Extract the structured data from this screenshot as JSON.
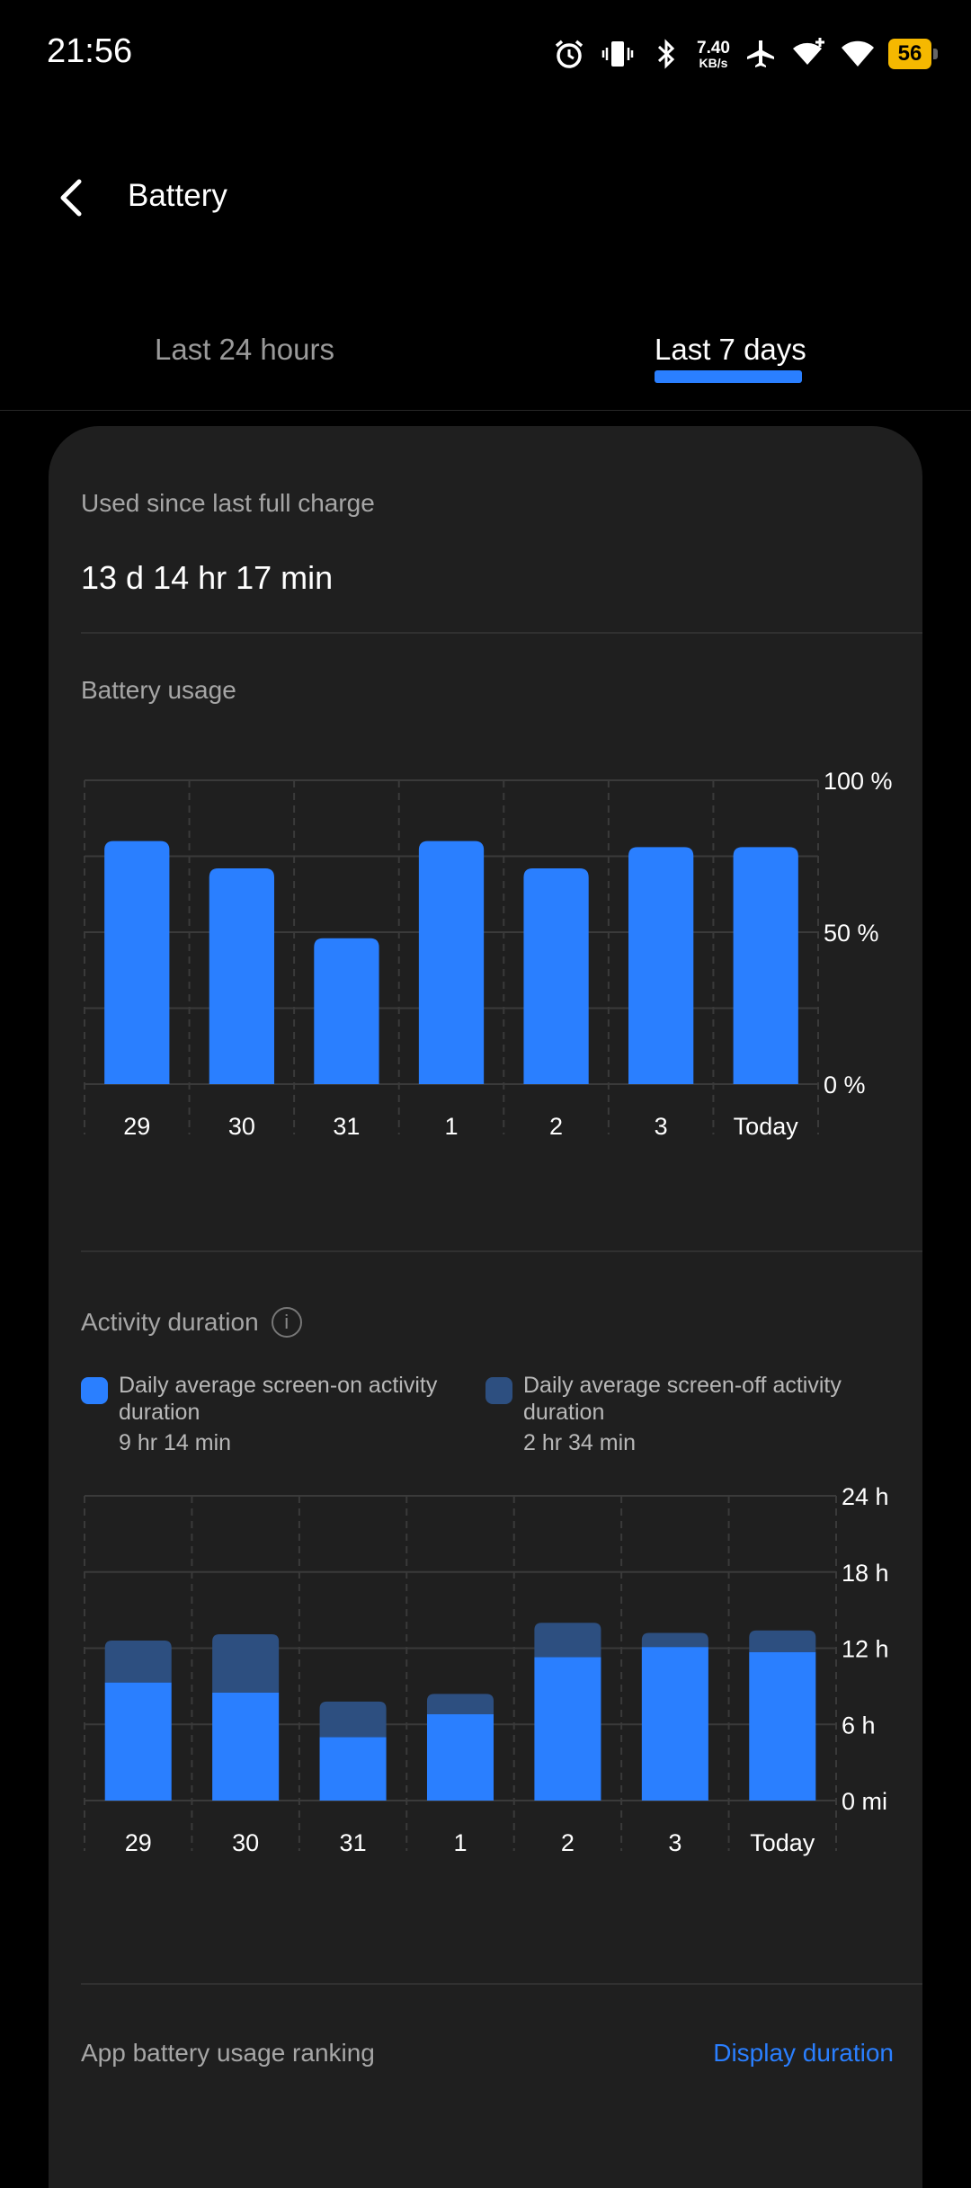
{
  "status": {
    "time": "21:56",
    "net_speed_value": "7.40",
    "net_speed_unit": "KB/s",
    "battery_level": "56",
    "icons": [
      "alarm-icon",
      "vibrate-icon",
      "bluetooth-icon",
      "airplane-icon",
      "wifi-plus-icon",
      "wifi-icon",
      "battery-icon"
    ]
  },
  "header": {
    "title": "Battery"
  },
  "tabs": [
    {
      "label": "Last 24 hours",
      "selected": false
    },
    {
      "label": "Last 7 days",
      "selected": true
    }
  ],
  "summary": {
    "label": "Used since last full charge",
    "value": "13 d 14 hr 17 min"
  },
  "battery_usage": {
    "label": "Battery usage",
    "chart_data": {
      "type": "bar",
      "categories": [
        "29",
        "30",
        "31",
        "1",
        "2",
        "3",
        "Today"
      ],
      "values": [
        80,
        71,
        48,
        80,
        71,
        78,
        78
      ],
      "ylim": [
        0,
        100
      ],
      "yticks": [
        "100 %",
        "50 %",
        "0 %"
      ],
      "color": "#2a7fff"
    }
  },
  "activity": {
    "label": "Activity duration",
    "legend": [
      {
        "text": "Daily average screen-on activity duration",
        "duration": "9 hr 14 min",
        "color": "#2a7fff"
      },
      {
        "text": "Daily average screen-off activity duration",
        "duration": "2 hr 34 min",
        "color": "#2d4f80"
      }
    ],
    "chart_data": {
      "type": "bar",
      "stacked": true,
      "categories": [
        "29",
        "30",
        "31",
        "1",
        "2",
        "3",
        "Today"
      ],
      "series": [
        {
          "values": [
            9.3,
            8.5,
            5.0,
            6.8,
            11.3,
            12.1,
            11.7
          ],
          "color": "#2a7fff"
        },
        {
          "values": [
            3.3,
            4.6,
            2.8,
            1.6,
            2.7,
            1.1,
            1.7
          ],
          "color": "#2d4f80"
        }
      ],
      "ylim": [
        0,
        24
      ],
      "yticks": [
        "24 h",
        "18 h",
        "12 h",
        "6 h",
        "0 mi"
      ]
    }
  },
  "ranking": {
    "label": "App battery usage ranking",
    "link": "Display duration"
  }
}
